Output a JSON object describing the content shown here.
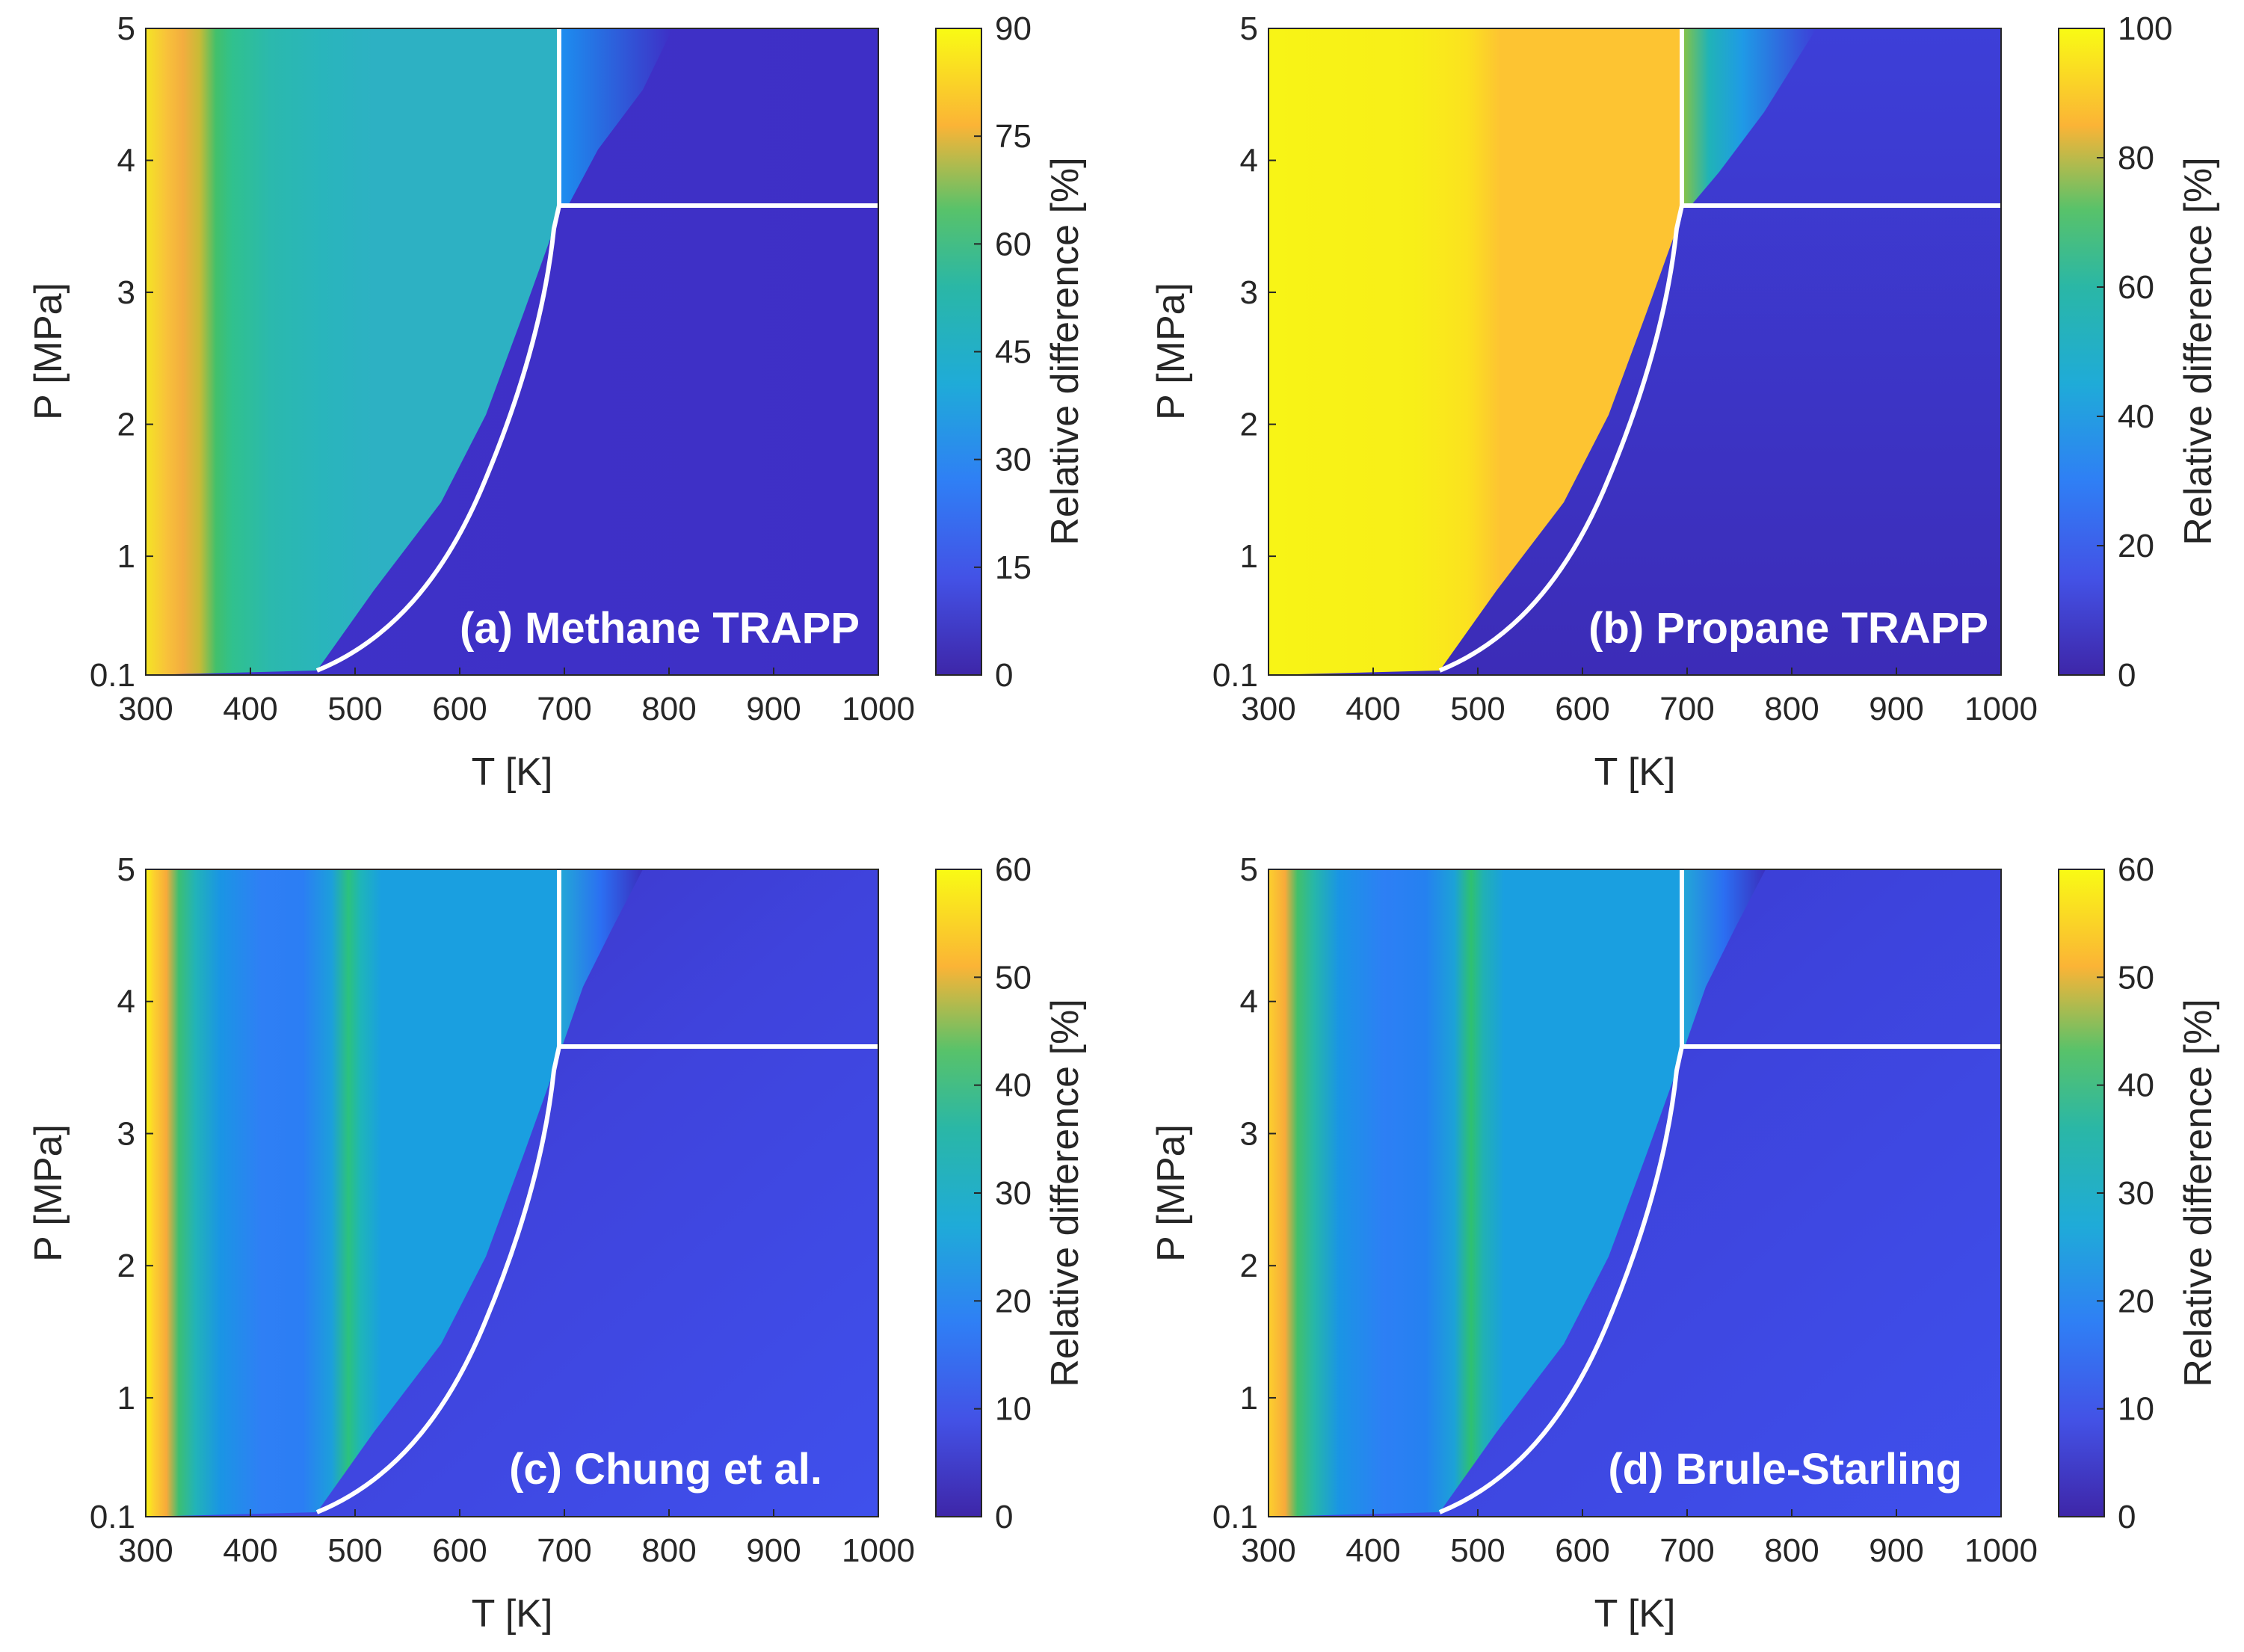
{
  "chart_data": [
    {
      "type": "heatmap",
      "title": "(a) Methane TRAPP",
      "xlabel": "T [K]",
      "ylabel": "P [MPa]",
      "x_ticks": [
        "300",
        "400",
        "500",
        "600",
        "700",
        "800",
        "900",
        "1000"
      ],
      "y_ticks": [
        "0.1",
        "1",
        "2",
        "3",
        "4",
        "5"
      ],
      "xlim": [
        300,
        1000
      ],
      "ylim": [
        0.1,
        5
      ],
      "colorbar": {
        "label": "Relative difference [%]",
        "range": [
          0,
          90
        ],
        "ticks": [
          "0",
          "15",
          "30",
          "45",
          "60",
          "75",
          "90"
        ]
      },
      "approx_values": {
        "liquid_300_400K": 85,
        "liquid_400_700K": 50,
        "supercritical": 5,
        "vapor": 3
      },
      "saturation_curve": {
        "T": [
          465,
          520,
          580,
          630,
          670,
          695,
          700
        ],
        "P": [
          0.1,
          0.4,
          1.0,
          1.7,
          2.6,
          3.4,
          3.7
        ]
      },
      "pseudocritical_line": {
        "T": [
          700,
          1000
        ],
        "P": [
          3.7,
          3.7
        ]
      }
    },
    {
      "type": "heatmap",
      "title": "(b) Propane TRAPP",
      "xlabel": "T [K]",
      "ylabel": "P [MPa]",
      "x_ticks": [
        "300",
        "400",
        "500",
        "600",
        "700",
        "800",
        "900",
        "1000"
      ],
      "y_ticks": [
        "0.1",
        "1",
        "2",
        "3",
        "4",
        "5"
      ],
      "xlim": [
        300,
        1000
      ],
      "ylim": [
        0.1,
        5
      ],
      "colorbar": {
        "label": "Relative difference [%]",
        "range": [
          0,
          100
        ],
        "ticks": [
          "0",
          "20",
          "40",
          "60",
          "80",
          "100"
        ]
      },
      "approx_values": {
        "liquid": 95,
        "near_curve": 85,
        "supercritical": 15,
        "vapor": 3
      },
      "saturation_curve": {
        "T": [
          465,
          520,
          580,
          630,
          670,
          695,
          700
        ],
        "P": [
          0.1,
          0.4,
          1.0,
          1.7,
          2.6,
          3.4,
          3.7
        ]
      },
      "pseudocritical_line": {
        "T": [
          700,
          1000
        ],
        "P": [
          3.7,
          3.7
        ]
      }
    },
    {
      "type": "heatmap",
      "title": "(c) Chung et al.",
      "xlabel": "T [K]",
      "ylabel": "P [MPa]",
      "x_ticks": [
        "300",
        "400",
        "500",
        "600",
        "700",
        "800",
        "900",
        "1000"
      ],
      "y_ticks": [
        "0.1",
        "1",
        "2",
        "3",
        "4",
        "5"
      ],
      "xlim": [
        300,
        1000
      ],
      "ylim": [
        0.1,
        5
      ],
      "colorbar": {
        "label": "Relative difference [%]",
        "range": [
          0,
          60
        ],
        "ticks": [
          "0",
          "10",
          "20",
          "30",
          "40",
          "50",
          "60"
        ]
      },
      "approx_values": {
        "low_T_edge": 55,
        "liquid": 15,
        "near_curve": 40,
        "vapor": 8
      },
      "saturation_curve": {
        "T": [
          465,
          520,
          580,
          630,
          670,
          695,
          700
        ],
        "P": [
          0.1,
          0.4,
          1.0,
          1.7,
          2.6,
          3.4,
          3.7
        ]
      },
      "pseudocritical_line": {
        "T": [
          700,
          1000
        ],
        "P": [
          3.7,
          3.7
        ]
      }
    },
    {
      "type": "heatmap",
      "title": "(d) Brule-Starling",
      "xlabel": "T [K]",
      "ylabel": "P [MPa]",
      "x_ticks": [
        "300",
        "400",
        "500",
        "600",
        "700",
        "800",
        "900",
        "1000"
      ],
      "y_ticks": [
        "0.1",
        "1",
        "2",
        "3",
        "4",
        "5"
      ],
      "xlim": [
        300,
        1000
      ],
      "ylim": [
        0.1,
        5
      ],
      "colorbar": {
        "label": "Relative difference [%]",
        "range": [
          0,
          60
        ],
        "ticks": [
          "0",
          "10",
          "20",
          "30",
          "40",
          "50",
          "60"
        ]
      },
      "approx_values": {
        "low_T_edge": 50,
        "liquid": 15,
        "near_curve": 40,
        "vapor": 6
      },
      "saturation_curve": {
        "T": [
          465,
          520,
          580,
          630,
          670,
          695,
          700
        ],
        "P": [
          0.1,
          0.4,
          1.0,
          1.7,
          2.6,
          3.4,
          3.7
        ]
      },
      "pseudocritical_line": {
        "T": [
          700,
          1000
        ],
        "P": [
          3.7,
          3.7
        ]
      }
    }
  ],
  "colors": {
    "dark": "#3e26a8",
    "blue": "#2f5ff5",
    "cyan": "#1fb0d0",
    "teal": "#2ab7a6",
    "green": "#26bf6b",
    "orange": "#fcb13a",
    "yellow": "#f8f416",
    "curve": "#ffffff"
  }
}
